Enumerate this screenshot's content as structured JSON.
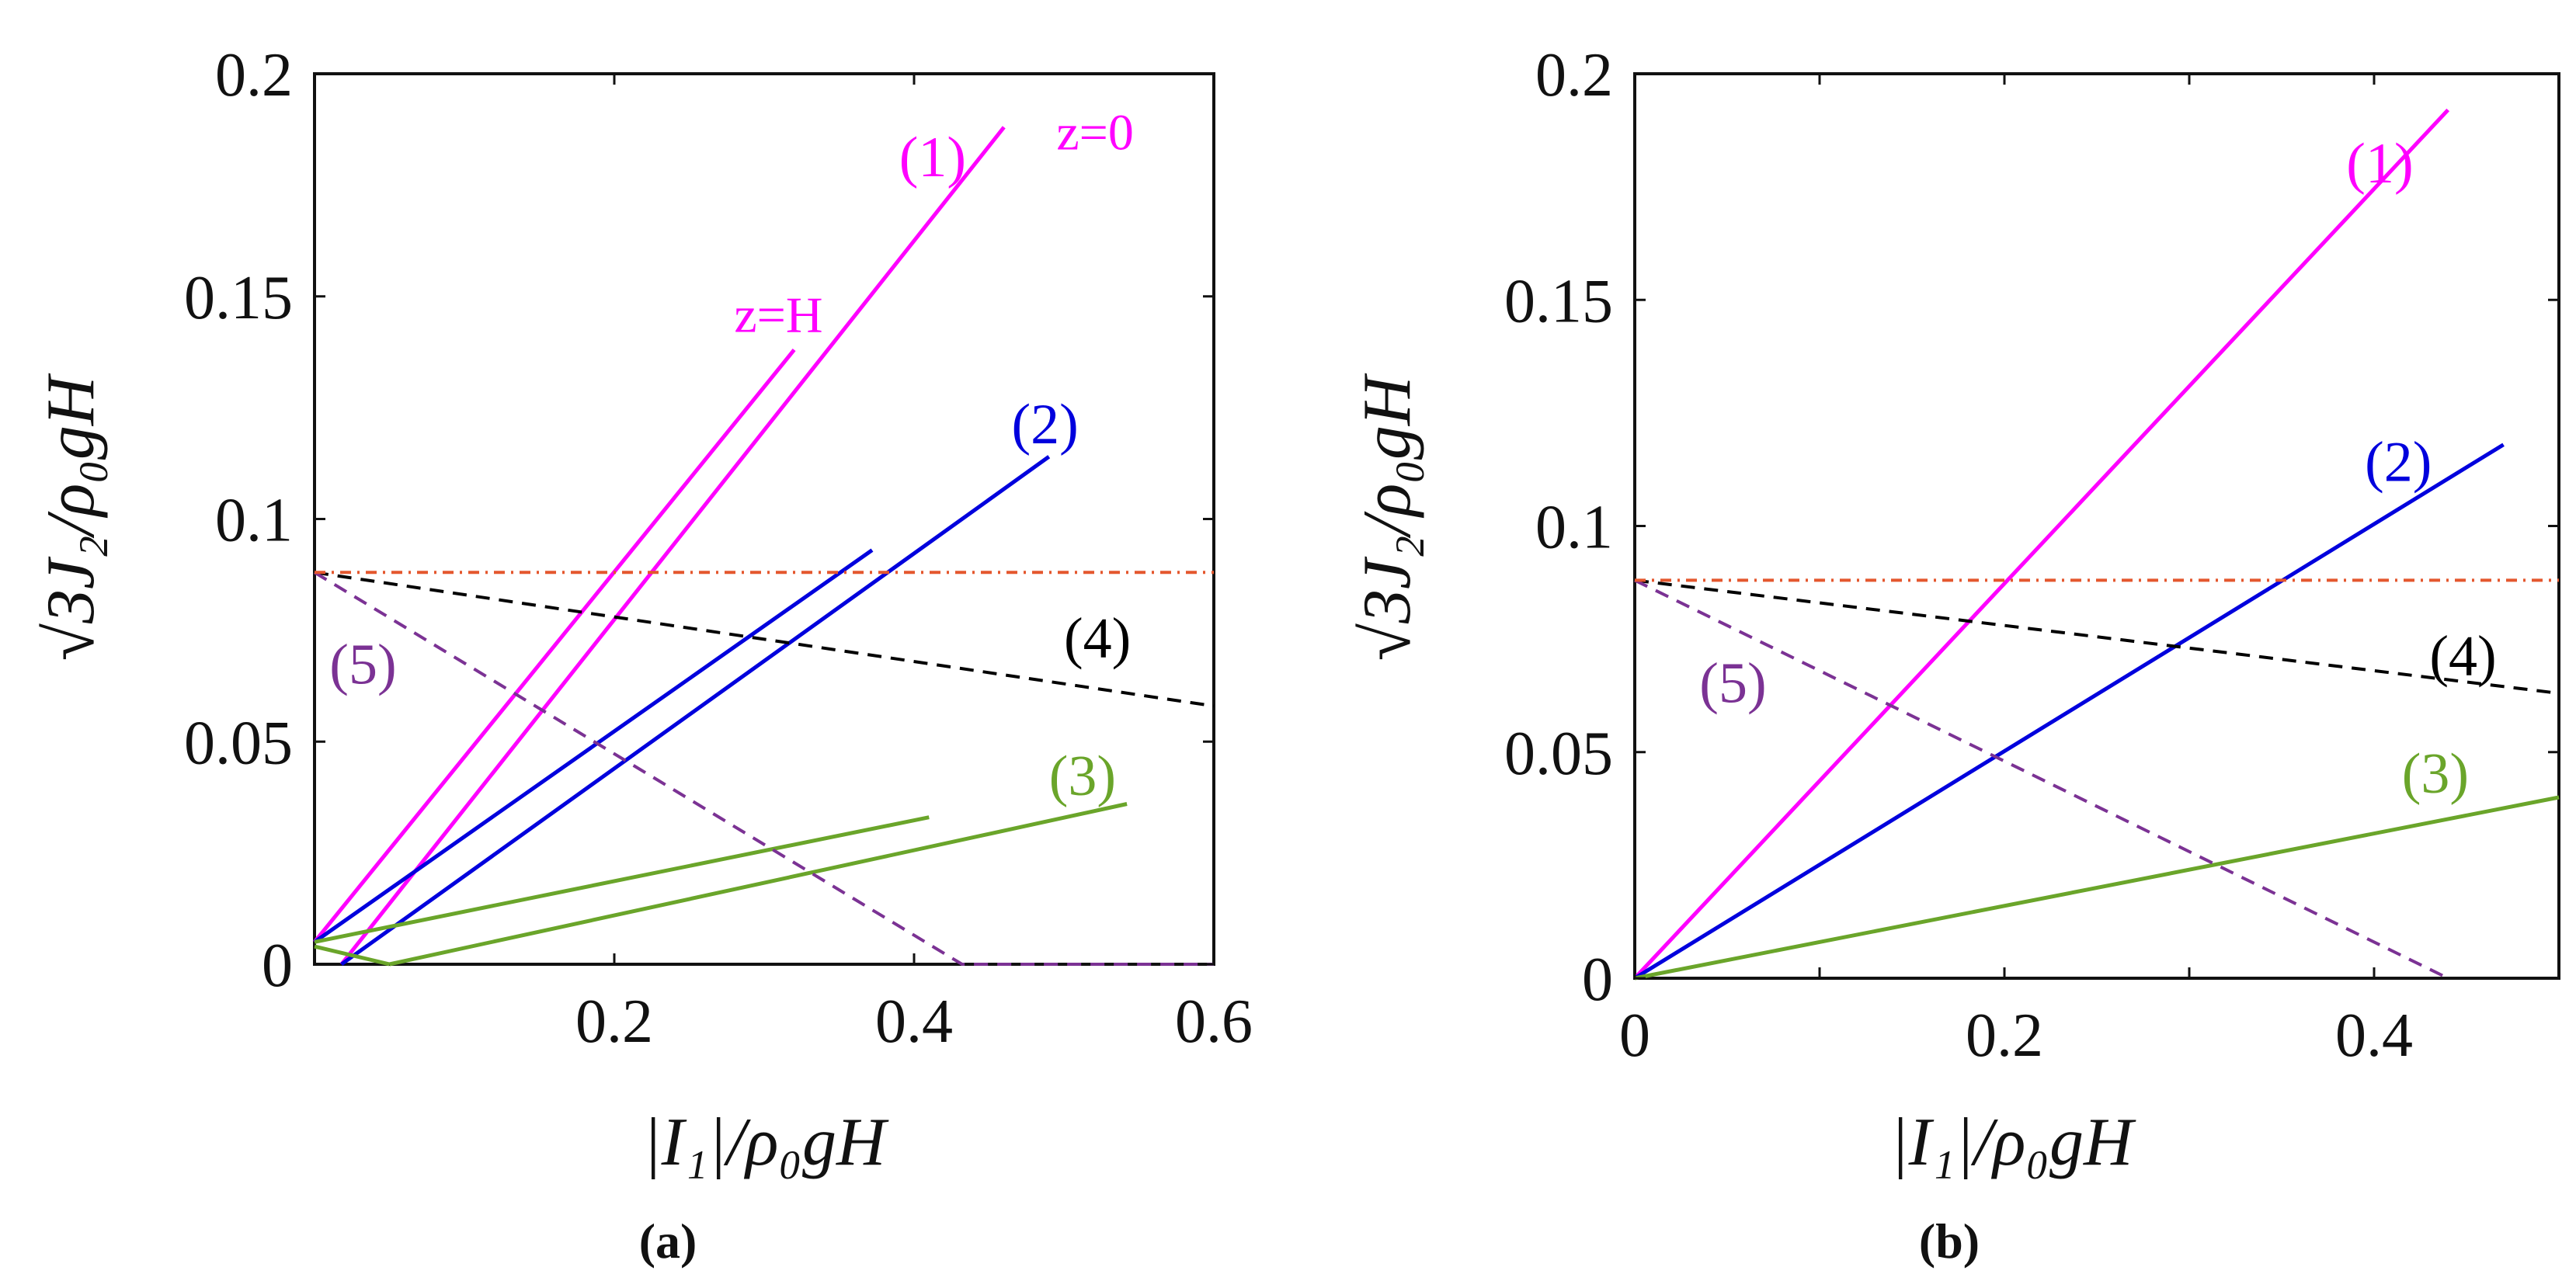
{
  "colors": {
    "curve_1": "#ff00ff",
    "curve_2": "#0000dd",
    "curve_3": "#6aa52a",
    "curve_4": "#000000",
    "curve_5": "#7b3294",
    "threshold": "#e4572e"
  },
  "chart_data": [
    {
      "type": "line",
      "caption": "(a)",
      "xlabel": "|I₁|/ρ₀gH",
      "ylabel": "√3J₂/ρ₀gH",
      "xlim": [
        0,
        0.6
      ],
      "ylim": [
        0,
        0.2
      ],
      "x_ticks": [
        0.2,
        0.4,
        0.6
      ],
      "x_tick_labels": [
        "0.2",
        "0.4",
        "0.6"
      ],
      "y_ticks": [
        0,
        0.05,
        0.1,
        0.15,
        0.2
      ],
      "y_tick_labels": [
        "0",
        "0.05",
        "0.1",
        "0.15",
        "0.2"
      ],
      "annotations": [
        {
          "text": "z=0",
          "x": 0.495,
          "y": 0.183,
          "color": "#ff00ff"
        },
        {
          "text": "z=H",
          "x": 0.28,
          "y": 0.142,
          "color": "#ff00ff"
        }
      ],
      "series": [
        {
          "name": "(1) z=0",
          "label": "(1)",
          "color": "#ff00ff",
          "dash": "solid",
          "points": [
            [
              0.018,
              0.0
            ],
            [
              0.46,
              0.188
            ]
          ],
          "label_pos": [
            0.39,
            0.177
          ]
        },
        {
          "name": "(1) z=H",
          "label": "",
          "color": "#ff00ff",
          "dash": "solid",
          "points": [
            [
              0.0,
              0.005
            ],
            [
              0.32,
              0.138
            ]
          ]
        },
        {
          "name": "(2) z=0",
          "label": "(2)",
          "color": "#0000dd",
          "dash": "solid",
          "points": [
            [
              0.018,
              0.0
            ],
            [
              0.49,
              0.114
            ]
          ],
          "label_pos": [
            0.465,
            0.117
          ]
        },
        {
          "name": "(2) z=H",
          "label": "",
          "color": "#0000dd",
          "dash": "solid",
          "points": [
            [
              0.0,
              0.005
            ],
            [
              0.372,
              0.093
            ]
          ]
        },
        {
          "name": "(3) z=0",
          "label": "(3)",
          "color": "#6aa52a",
          "dash": "solid",
          "points": [
            [
              0.05,
              0.0
            ],
            [
              0.542,
              0.036
            ]
          ],
          "label_pos": [
            0.49,
            0.038
          ]
        },
        {
          "name": "(3) z=H",
          "label": "",
          "color": "#6aa52a",
          "dash": "solid",
          "points": [
            [
              0.0,
              0.005
            ],
            [
              0.41,
              0.033
            ]
          ]
        },
        {
          "name": "(3) tail",
          "label": "",
          "color": "#6aa52a",
          "dash": "solid",
          "points": [
            [
              0.0,
              0.004
            ],
            [
              0.05,
              0.0
            ]
          ]
        },
        {
          "name": "(4)",
          "label": "(4)",
          "color": "#000000",
          "dash": "dashed",
          "points": [
            [
              0.0,
              0.088
            ],
            [
              0.6,
              0.058
            ]
          ],
          "label_pos": [
            0.5,
            0.069
          ]
        },
        {
          "name": "(5)",
          "label": "(5)",
          "color": "#7b3294",
          "dash": "dashed",
          "points": [
            [
              0.0,
              0.088
            ],
            [
              0.432,
              0.0
            ],
            [
              0.6,
              0.0
            ]
          ],
          "label_pos": [
            0.01,
            0.063
          ]
        },
        {
          "name": "threshold",
          "label": "",
          "color": "#e4572e",
          "dash": "dashdot",
          "points": [
            [
              0.0,
              0.088
            ],
            [
              0.6,
              0.088
            ]
          ]
        }
      ]
    },
    {
      "type": "line",
      "caption": "(b)",
      "xlabel": "|I₁|/ρ₀gH",
      "ylabel": "√3J₂/ρ₀gH",
      "xlim": [
        0,
        0.5
      ],
      "ylim": [
        0,
        0.2
      ],
      "x_ticks": [
        0,
        0.1,
        0.2,
        0.3,
        0.4
      ],
      "x_tick_labels": [
        "0",
        "",
        "0.2",
        "",
        "0.4"
      ],
      "y_ticks": [
        0,
        0.05,
        0.1,
        0.15,
        0.2
      ],
      "y_tick_labels": [
        "0",
        "0.05",
        "0.1",
        "0.15",
        "0.2"
      ],
      "annotations": [],
      "series": [
        {
          "name": "(1)",
          "label": "(1)",
          "color": "#ff00ff",
          "dash": "solid",
          "points": [
            [
              0.0,
              0.0
            ],
            [
              0.44,
              0.192
            ]
          ],
          "label_pos": [
            0.385,
            0.176
          ]
        },
        {
          "name": "(2)",
          "label": "(2)",
          "color": "#0000dd",
          "dash": "solid",
          "points": [
            [
              0.0,
              0.0
            ],
            [
              0.47,
              0.118
            ]
          ],
          "label_pos": [
            0.395,
            0.11
          ]
        },
        {
          "name": "(3)",
          "label": "(3)",
          "color": "#6aa52a",
          "dash": "solid",
          "points": [
            [
              0.0,
              0.0
            ],
            [
              0.5,
              0.04
            ]
          ],
          "label_pos": [
            0.415,
            0.041
          ]
        },
        {
          "name": "(4)",
          "label": "(4)",
          "color": "#000000",
          "dash": "dashed",
          "points": [
            [
              0.0,
              0.088
            ],
            [
              0.5,
              0.063
            ]
          ],
          "label_pos": [
            0.43,
            0.067
          ]
        },
        {
          "name": "(5)",
          "label": "(5)",
          "color": "#7b3294",
          "dash": "dashed",
          "points": [
            [
              0.0,
              0.088
            ],
            [
              0.44,
              0.0
            ]
          ],
          "label_pos": [
            0.035,
            0.061
          ]
        },
        {
          "name": "threshold",
          "label": "",
          "color": "#e4572e",
          "dash": "dashdot",
          "points": [
            [
              0.0,
              0.088
            ],
            [
              0.5,
              0.088
            ]
          ]
        }
      ]
    }
  ]
}
